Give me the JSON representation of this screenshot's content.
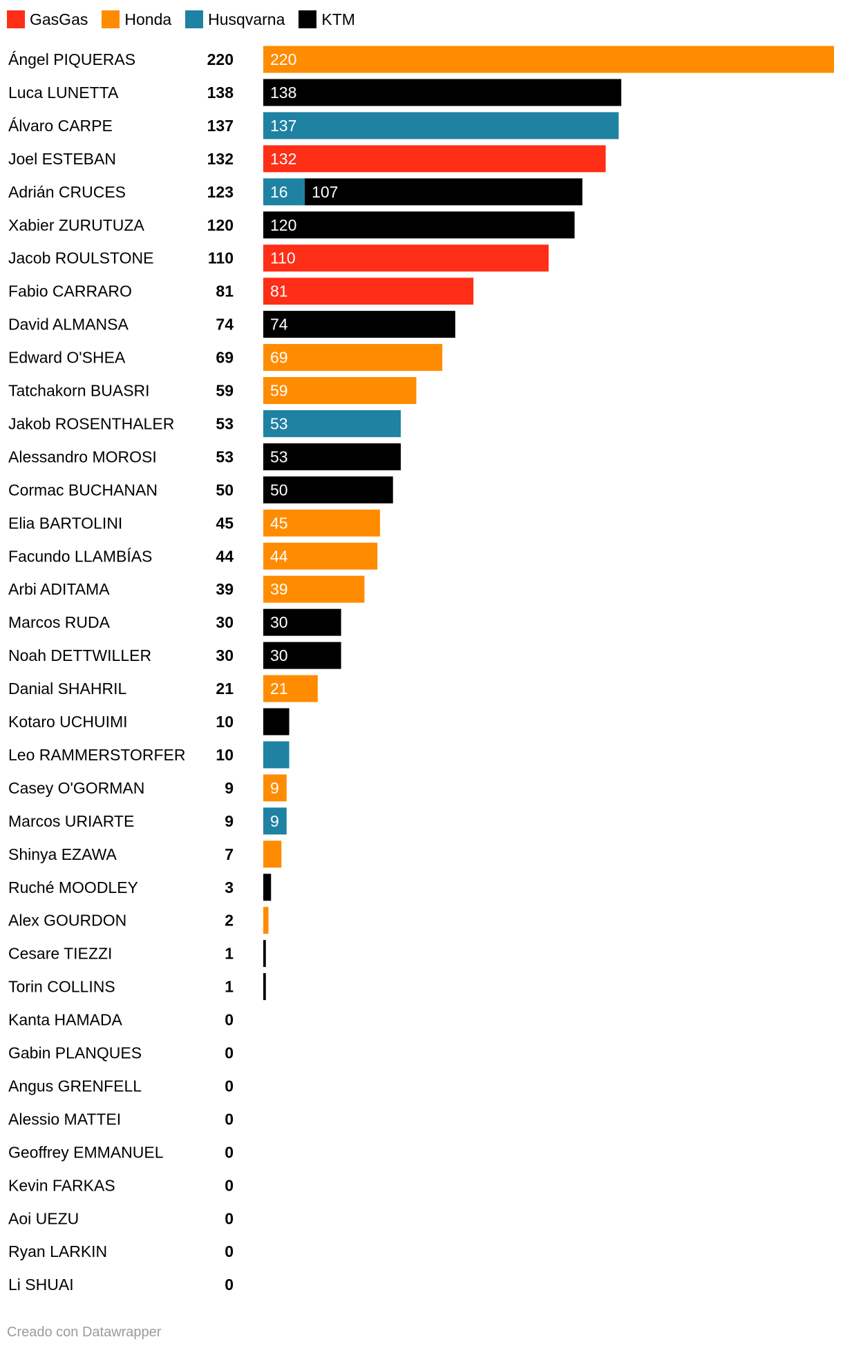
{
  "chart_data": {
    "type": "bar",
    "orientation": "horizontal",
    "stacked": true,
    "legend": [
      {
        "name": "GasGas",
        "color": "#ff2e17"
      },
      {
        "name": "Honda",
        "color": "#ff8c00"
      },
      {
        "name": "Husqvarna",
        "color": "#1f82a3"
      },
      {
        "name": "KTM",
        "color": "#000000"
      }
    ],
    "legend_placement": "top-left",
    "grid": false,
    "xlim": [
      0,
      220
    ],
    "rows": [
      {
        "name": "Ángel PIQUERAS",
        "total": "220",
        "segments": [
          {
            "brand": "Honda",
            "value": 220,
            "label": "220"
          }
        ]
      },
      {
        "name": "Luca LUNETTA",
        "total": "138",
        "segments": [
          {
            "brand": "KTM",
            "value": 138,
            "label": "138"
          }
        ]
      },
      {
        "name": "Álvaro CARPE",
        "total": "137",
        "segments": [
          {
            "brand": "Husqvarna",
            "value": 137,
            "label": "137"
          }
        ]
      },
      {
        "name": "Joel ESTEBAN",
        "total": "132",
        "segments": [
          {
            "brand": "GasGas",
            "value": 132,
            "label": "132"
          }
        ]
      },
      {
        "name": "Adrián CRUCES",
        "total": "123",
        "segments": [
          {
            "brand": "Husqvarna",
            "value": 16,
            "label": "16"
          },
          {
            "brand": "KTM",
            "value": 107,
            "label": "107"
          }
        ]
      },
      {
        "name": "Xabier ZURUTUZA",
        "total": "120",
        "segments": [
          {
            "brand": "KTM",
            "value": 120,
            "label": "120"
          }
        ]
      },
      {
        "name": "Jacob ROULSTONE",
        "total": "110",
        "segments": [
          {
            "brand": "GasGas",
            "value": 110,
            "label": "110"
          }
        ]
      },
      {
        "name": "Fabio CARRARO",
        "total": "81",
        "segments": [
          {
            "brand": "GasGas",
            "value": 81,
            "label": "81"
          }
        ]
      },
      {
        "name": "David ALMANSA",
        "total": "74",
        "segments": [
          {
            "brand": "KTM",
            "value": 74,
            "label": "74"
          }
        ]
      },
      {
        "name": "Edward O'SHEA",
        "total": "69",
        "segments": [
          {
            "brand": "Honda",
            "value": 69,
            "label": "69"
          }
        ]
      },
      {
        "name": "Tatchakorn BUASRI",
        "total": "59",
        "segments": [
          {
            "brand": "Honda",
            "value": 59,
            "label": "59"
          }
        ]
      },
      {
        "name": "Jakob ROSENTHALER",
        "total": "53",
        "segments": [
          {
            "brand": "Husqvarna",
            "value": 53,
            "label": "53"
          }
        ]
      },
      {
        "name": "Alessandro MOROSI",
        "total": "53",
        "segments": [
          {
            "brand": "KTM",
            "value": 53,
            "label": "53"
          }
        ]
      },
      {
        "name": "Cormac BUCHANAN",
        "total": "50",
        "segments": [
          {
            "brand": "KTM",
            "value": 50,
            "label": "50"
          }
        ]
      },
      {
        "name": "Elia BARTOLINI",
        "total": "45",
        "segments": [
          {
            "brand": "Honda",
            "value": 45,
            "label": "45"
          }
        ]
      },
      {
        "name": "Facundo LLAMBÍAS",
        "total": "44",
        "segments": [
          {
            "brand": "Honda",
            "value": 44,
            "label": "44"
          }
        ]
      },
      {
        "name": "Arbi ADITAMA",
        "total": "39",
        "segments": [
          {
            "brand": "Honda",
            "value": 39,
            "label": "39"
          }
        ]
      },
      {
        "name": "Marcos RUDA",
        "total": "30",
        "segments": [
          {
            "brand": "KTM",
            "value": 30,
            "label": "30"
          }
        ]
      },
      {
        "name": "Noah DETTWILLER",
        "total": "30",
        "segments": [
          {
            "brand": "KTM",
            "value": 30,
            "label": "30"
          }
        ]
      },
      {
        "name": "Danial SHAHRIL",
        "total": "21",
        "segments": [
          {
            "brand": "Honda",
            "value": 21,
            "label": "21"
          }
        ]
      },
      {
        "name": "Kotaro UCHUIMI",
        "total": "10",
        "segments": [
          {
            "brand": "KTM",
            "value": 10,
            "label": ""
          }
        ]
      },
      {
        "name": "Leo RAMMERSTORFER",
        "total": "10",
        "segments": [
          {
            "brand": "Husqvarna",
            "value": 10,
            "label": ""
          }
        ]
      },
      {
        "name": "Casey O'GORMAN",
        "total": "9",
        "segments": [
          {
            "brand": "Honda",
            "value": 9,
            "label": "9"
          }
        ]
      },
      {
        "name": "Marcos URIARTE",
        "total": "9",
        "segments": [
          {
            "brand": "Husqvarna",
            "value": 9,
            "label": "9"
          }
        ]
      },
      {
        "name": "Shinya EZAWA",
        "total": "7",
        "segments": [
          {
            "brand": "Honda",
            "value": 7,
            "label": ""
          }
        ]
      },
      {
        "name": "Ruché MOODLEY",
        "total": "3",
        "segments": [
          {
            "brand": "KTM",
            "value": 3,
            "label": ""
          }
        ]
      },
      {
        "name": "Alex GOURDON",
        "total": "2",
        "segments": [
          {
            "brand": "Honda",
            "value": 2,
            "label": ""
          }
        ]
      },
      {
        "name": "Cesare TIEZZI",
        "total": "1",
        "segments": [
          {
            "brand": "KTM",
            "value": 1,
            "label": ""
          }
        ]
      },
      {
        "name": "Torin COLLINS",
        "total": "1",
        "segments": [
          {
            "brand": "KTM",
            "value": 1,
            "label": ""
          }
        ]
      },
      {
        "name": "Kanta HAMADA",
        "total": "0",
        "segments": []
      },
      {
        "name": "Gabin PLANQUES",
        "total": "0",
        "segments": []
      },
      {
        "name": "Angus GRENFELL",
        "total": "0",
        "segments": []
      },
      {
        "name": "Alessio MATTEI",
        "total": "0",
        "segments": []
      },
      {
        "name": "Geoffrey EMMANUEL",
        "total": "0",
        "segments": []
      },
      {
        "name": "Kevin FARKAS",
        "total": "0",
        "segments": []
      },
      {
        "name": "Aoi UEZU",
        "total": "0",
        "segments": []
      },
      {
        "name": "Ryan LARKIN",
        "total": "0",
        "segments": []
      },
      {
        "name": "Li SHUAI",
        "total": "0",
        "segments": []
      }
    ]
  },
  "credit": "Creado con Datawrapper"
}
